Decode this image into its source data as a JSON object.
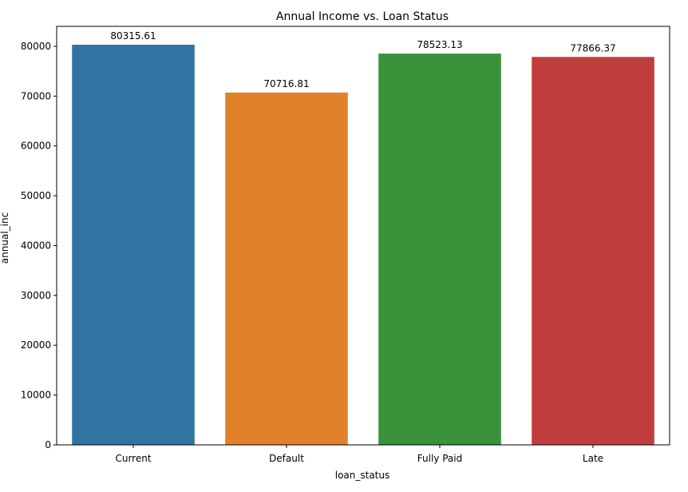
{
  "chart_data": {
    "type": "bar",
    "title": "Annual Income vs. Loan Status",
    "xlabel": "loan_status",
    "ylabel": "annual_inc",
    "categories": [
      "Current",
      "Default",
      "Fully Paid",
      "Late"
    ],
    "values": [
      80315.61,
      70716.81,
      78523.13,
      77866.37
    ],
    "data_labels": [
      "80315.61",
      "70716.81",
      "78523.13",
      "77866.37"
    ],
    "colors": [
      "#3274a1",
      "#e1812c",
      "#3a923a",
      "#c03d3e"
    ],
    "ylim": [
      0,
      84000
    ],
    "yticks": [
      0,
      10000,
      20000,
      30000,
      40000,
      50000,
      60000,
      70000,
      80000
    ],
    "grid": false,
    "legend": "none"
  }
}
